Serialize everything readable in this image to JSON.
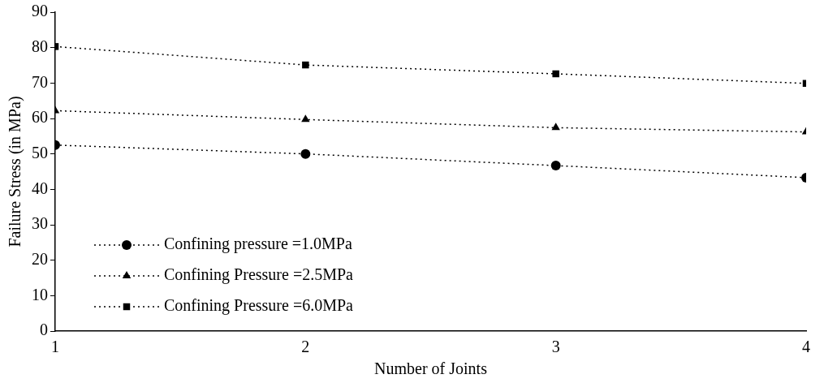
{
  "chart_data": {
    "type": "line",
    "xlabel": "Number of Joints",
    "ylabel": "Failure Stress (in MPa)",
    "x": [
      1,
      2,
      3,
      4
    ],
    "series": [
      {
        "name": "Confining pressure =1.0MPa",
        "color": "#000000",
        "marker": "circle",
        "values": [
          52.5,
          50,
          46.7,
          43.3
        ]
      },
      {
        "name": "Confining Pressure =2.5MPa",
        "color": "#000000",
        "marker": "triangle",
        "values": [
          62.2,
          59.7,
          57.4,
          56.2
        ]
      },
      {
        "name": "Confining Pressure =6.0MPa",
        "color": "#000000",
        "marker": "square",
        "values": [
          80.3,
          75.1,
          72.6,
          69.9
        ]
      }
    ],
    "xlim": [
      1,
      4
    ],
    "xticks": [
      1,
      2,
      3,
      4
    ],
    "ylim": [
      0,
      90
    ],
    "yticks": [
      0,
      10,
      20,
      30,
      40,
      50,
      60,
      70,
      80,
      90
    ],
    "grid": false,
    "legend": "bottom left",
    "line_style": "dotted"
  }
}
